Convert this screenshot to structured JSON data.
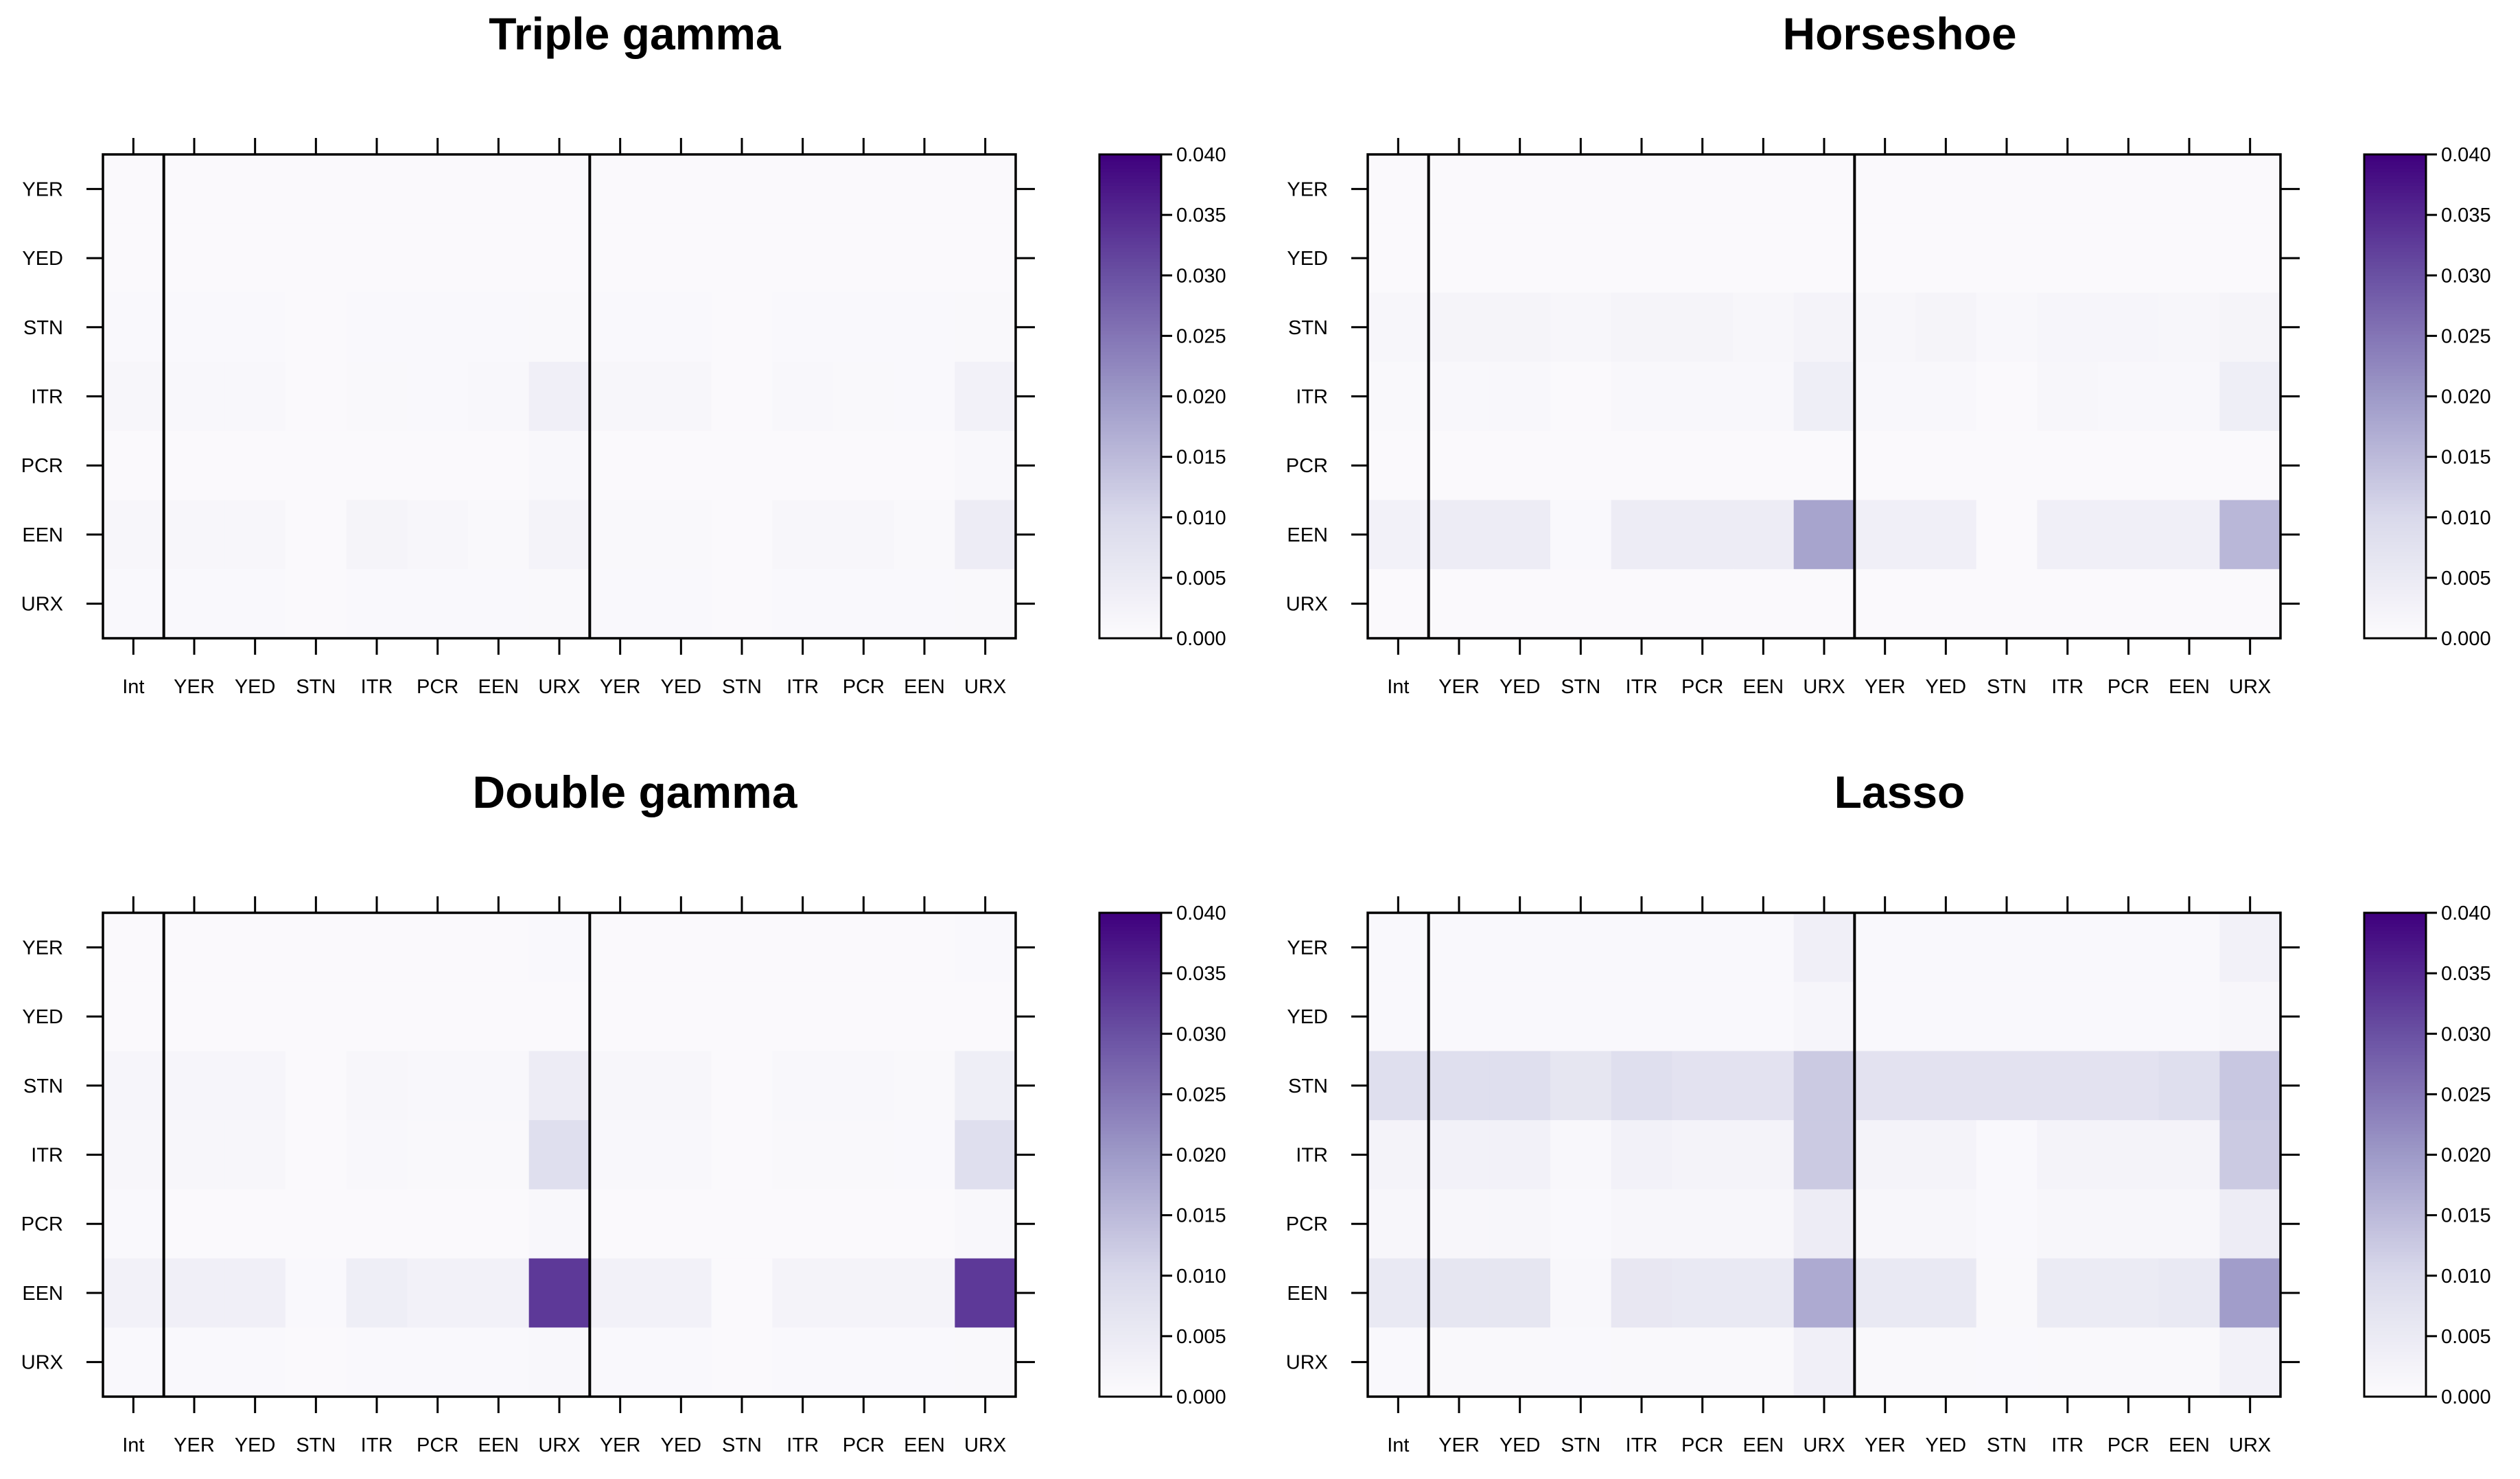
{
  "chart_data": [
    {
      "type": "heatmap",
      "title": "Triple gamma",
      "rows": [
        "YER",
        "YED",
        "STN",
        "ITR",
        "PCR",
        "EEN",
        "URX"
      ],
      "columns": [
        "Int",
        "YER",
        "YED",
        "STN",
        "ITR",
        "PCR",
        "EEN",
        "URX",
        "YER",
        "YED",
        "STN",
        "ITR",
        "PCR",
        "EEN",
        "URX"
      ],
      "values": [
        [
          0.0005,
          0.0005,
          0.0005,
          0.0005,
          0.0005,
          0.0005,
          0.0005,
          0.0005,
          0.0005,
          0.0005,
          0.0005,
          0.0005,
          0.0005,
          0.0005,
          0.0005
        ],
        [
          0.0005,
          0.0005,
          0.0005,
          0.0005,
          0.0005,
          0.0005,
          0.0005,
          0.0005,
          0.0005,
          0.0005,
          0.0005,
          0.0005,
          0.0005,
          0.0005,
          0.0005
        ],
        [
          0.0008,
          0.0008,
          0.0008,
          0.0006,
          0.0008,
          0.0008,
          0.0008,
          0.001,
          0.0008,
          0.0008,
          0.0006,
          0.0008,
          0.0008,
          0.0008,
          0.001
        ],
        [
          0.0015,
          0.0012,
          0.0012,
          0.0006,
          0.001,
          0.0008,
          0.0012,
          0.0035,
          0.0015,
          0.0015,
          0.0005,
          0.0012,
          0.001,
          0.0008,
          0.003
        ],
        [
          0.0006,
          0.0006,
          0.0006,
          0.0005,
          0.0006,
          0.0006,
          0.0006,
          0.0012,
          0.0006,
          0.0006,
          0.0005,
          0.0006,
          0.0006,
          0.0006,
          0.0012
        ],
        [
          0.0015,
          0.0015,
          0.0015,
          0.0006,
          0.002,
          0.0015,
          0.001,
          0.0025,
          0.001,
          0.001,
          0.0005,
          0.0015,
          0.0015,
          0.001,
          0.0045
        ],
        [
          0.0008,
          0.0008,
          0.0008,
          0.0006,
          0.0008,
          0.0008,
          0.0008,
          0.001,
          0.0008,
          0.0008,
          0.0006,
          0.0008,
          0.0008,
          0.0008,
          0.001
        ]
      ],
      "block_separators_after_column": [
        1,
        8
      ],
      "colorbar": {
        "min": 0,
        "max": 0.04,
        "ticks": [
          "0.000",
          "0.005",
          "0.010",
          "0.015",
          "0.020",
          "0.025",
          "0.030",
          "0.035",
          "0.040"
        ]
      }
    },
    {
      "type": "heatmap",
      "title": "Horseshoe",
      "rows": [
        "YER",
        "YED",
        "STN",
        "ITR",
        "PCR",
        "EEN",
        "URX"
      ],
      "columns": [
        "Int",
        "YER",
        "YED",
        "STN",
        "ITR",
        "PCR",
        "EEN",
        "URX",
        "YER",
        "YED",
        "STN",
        "ITR",
        "PCR",
        "EEN",
        "URX"
      ],
      "values": [
        [
          0.0005,
          0.0005,
          0.0005,
          0.0005,
          0.0005,
          0.0005,
          0.0005,
          0.0005,
          0.0005,
          0.0005,
          0.0005,
          0.0005,
          0.0005,
          0.0005,
          0.0005
        ],
        [
          0.0005,
          0.0005,
          0.0005,
          0.0005,
          0.0005,
          0.0005,
          0.0005,
          0.0005,
          0.0005,
          0.0005,
          0.0005,
          0.0005,
          0.0005,
          0.0005,
          0.0005
        ],
        [
          0.0015,
          0.002,
          0.002,
          0.0015,
          0.002,
          0.002,
          0.0015,
          0.0025,
          0.0015,
          0.002,
          0.0012,
          0.0018,
          0.0018,
          0.0015,
          0.002
        ],
        [
          0.001,
          0.0012,
          0.0012,
          0.0006,
          0.0012,
          0.0012,
          0.0012,
          0.004,
          0.0012,
          0.0012,
          0.0005,
          0.0015,
          0.0012,
          0.0012,
          0.004
        ],
        [
          0.0005,
          0.0005,
          0.0005,
          0.0005,
          0.0005,
          0.0005,
          0.0005,
          0.0005,
          0.0005,
          0.0005,
          0.0005,
          0.0005,
          0.0005,
          0.0005,
          0.0005
        ],
        [
          0.003,
          0.0045,
          0.0045,
          0.0008,
          0.0045,
          0.0045,
          0.0045,
          0.0185,
          0.0035,
          0.0035,
          0.0006,
          0.0035,
          0.0035,
          0.0035,
          0.0155
        ],
        [
          0.0006,
          0.0006,
          0.0006,
          0.0005,
          0.0006,
          0.0006,
          0.0006,
          0.0006,
          0.0006,
          0.0006,
          0.0005,
          0.0006,
          0.0006,
          0.0006,
          0.0006
        ]
      ],
      "block_separators_after_column": [
        1,
        8
      ],
      "colorbar": {
        "min": 0,
        "max": 0.04,
        "ticks": [
          "0.000",
          "0.005",
          "0.010",
          "0.015",
          "0.020",
          "0.025",
          "0.030",
          "0.035",
          "0.040"
        ]
      }
    },
    {
      "type": "heatmap",
      "title": "Double gamma",
      "rows": [
        "YER",
        "YED",
        "STN",
        "ITR",
        "PCR",
        "EEN",
        "URX"
      ],
      "columns": [
        "Int",
        "YER",
        "YED",
        "STN",
        "ITR",
        "PCR",
        "EEN",
        "URX",
        "YER",
        "YED",
        "STN",
        "ITR",
        "PCR",
        "EEN",
        "URX"
      ],
      "values": [
        [
          0.0006,
          0.0005,
          0.0005,
          0.0005,
          0.0005,
          0.0005,
          0.0005,
          0.0008,
          0.0005,
          0.0005,
          0.0005,
          0.0005,
          0.0005,
          0.0005,
          0.0008
        ],
        [
          0.0006,
          0.0005,
          0.0005,
          0.0005,
          0.0005,
          0.0005,
          0.0005,
          0.0006,
          0.0005,
          0.0005,
          0.0005,
          0.0005,
          0.0005,
          0.0005,
          0.0006
        ],
        [
          0.0018,
          0.0018,
          0.0018,
          0.0006,
          0.0015,
          0.0012,
          0.0012,
          0.0045,
          0.0015,
          0.0015,
          0.0006,
          0.0012,
          0.0012,
          0.001,
          0.004
        ],
        [
          0.0015,
          0.0015,
          0.0015,
          0.0006,
          0.0012,
          0.001,
          0.001,
          0.0085,
          0.0012,
          0.0012,
          0.0006,
          0.001,
          0.001,
          0.0008,
          0.0085
        ],
        [
          0.0008,
          0.0006,
          0.0006,
          0.0005,
          0.0006,
          0.0006,
          0.0006,
          0.0012,
          0.0006,
          0.0006,
          0.0005,
          0.0006,
          0.0006,
          0.0006,
          0.0012
        ],
        [
          0.003,
          0.0035,
          0.0035,
          0.0008,
          0.004,
          0.003,
          0.003,
          0.033,
          0.003,
          0.003,
          0.0006,
          0.0025,
          0.0025,
          0.0025,
          0.033
        ],
        [
          0.0008,
          0.0008,
          0.0008,
          0.0006,
          0.0008,
          0.0008,
          0.0008,
          0.0012,
          0.0008,
          0.0008,
          0.0006,
          0.0008,
          0.0008,
          0.0008,
          0.001
        ]
      ],
      "block_separators_after_column": [
        1,
        8
      ],
      "colorbar": {
        "min": 0,
        "max": 0.04,
        "ticks": [
          "0.000",
          "0.005",
          "0.010",
          "0.015",
          "0.020",
          "0.025",
          "0.030",
          "0.035",
          "0.040"
        ]
      }
    },
    {
      "type": "heatmap",
      "title": "Lasso",
      "rows": [
        "YER",
        "YED",
        "STN",
        "ITR",
        "PCR",
        "EEN",
        "URX"
      ],
      "columns": [
        "Int",
        "YER",
        "YED",
        "STN",
        "ITR",
        "PCR",
        "EEN",
        "URX",
        "YER",
        "YED",
        "STN",
        "ITR",
        "PCR",
        "EEN",
        "URX"
      ],
      "values": [
        [
          0.0008,
          0.0008,
          0.0008,
          0.0008,
          0.0008,
          0.0008,
          0.0008,
          0.0035,
          0.0008,
          0.0008,
          0.0008,
          0.0008,
          0.0008,
          0.0008,
          0.003
        ],
        [
          0.0008,
          0.0008,
          0.0008,
          0.0008,
          0.0008,
          0.0008,
          0.0008,
          0.0018,
          0.0008,
          0.0008,
          0.0008,
          0.0008,
          0.0008,
          0.0008,
          0.0015
        ],
        [
          0.0085,
          0.0085,
          0.0085,
          0.0065,
          0.0085,
          0.0075,
          0.0075,
          0.0125,
          0.0075,
          0.0075,
          0.0075,
          0.0075,
          0.0075,
          0.0085,
          0.013
        ],
        [
          0.0025,
          0.003,
          0.003,
          0.0012,
          0.003,
          0.0025,
          0.0025,
          0.0125,
          0.0025,
          0.0025,
          0.0008,
          0.0025,
          0.0025,
          0.0025,
          0.0125
        ],
        [
          0.0015,
          0.0015,
          0.0015,
          0.0008,
          0.0015,
          0.0015,
          0.0015,
          0.0045,
          0.0015,
          0.0015,
          0.0008,
          0.0015,
          0.0015,
          0.0015,
          0.0045
        ],
        [
          0.0055,
          0.0065,
          0.0065,
          0.0012,
          0.006,
          0.0055,
          0.0055,
          0.0175,
          0.0055,
          0.0055,
          0.001,
          0.005,
          0.005,
          0.0055,
          0.0195
        ],
        [
          0.0008,
          0.001,
          0.001,
          0.0008,
          0.001,
          0.001,
          0.001,
          0.0035,
          0.001,
          0.001,
          0.0008,
          0.001,
          0.001,
          0.001,
          0.003
        ]
      ],
      "block_separators_after_column": [
        1,
        8
      ],
      "colorbar": {
        "min": 0,
        "max": 0.04,
        "ticks": [
          "0.000",
          "0.005",
          "0.010",
          "0.015",
          "0.020",
          "0.025",
          "0.030",
          "0.035",
          "0.040"
        ]
      }
    }
  ],
  "colorscale": {
    "low": "#fcfbfd",
    "mid1": "#dadaeb",
    "mid2": "#9e9ac8",
    "mid3": "#6a51a3",
    "high": "#3f007d"
  }
}
